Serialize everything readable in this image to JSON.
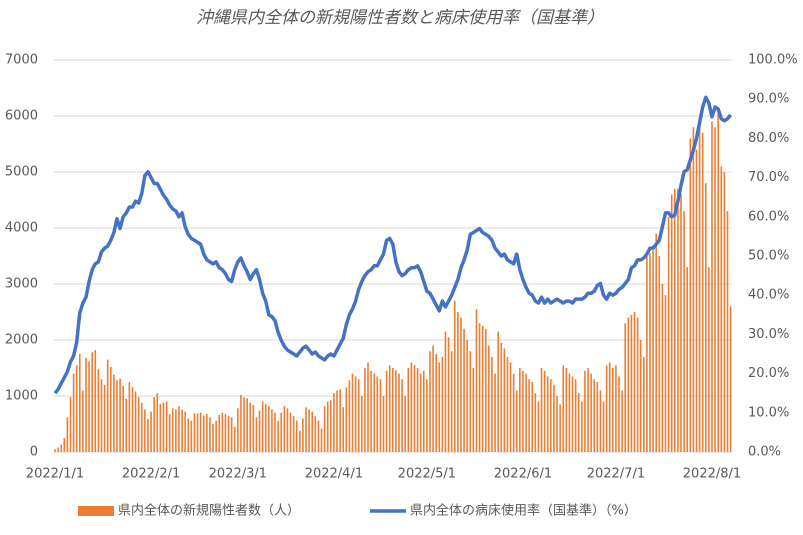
{
  "chart_data": {
    "type": "combo",
    "title": "沖縄県内全体の新規陽性者数と病床使用率（国基準）",
    "categories": [
      "2022/1/1",
      null,
      null,
      null,
      null,
      null,
      null,
      null,
      null,
      null,
      null,
      null,
      null,
      null,
      null,
      null,
      null,
      null,
      null,
      null,
      null,
      null,
      null,
      null,
      null,
      null,
      null,
      null,
      null,
      null,
      null,
      "2022/2/1",
      null,
      null,
      null,
      null,
      null,
      null,
      null,
      null,
      null,
      null,
      null,
      null,
      null,
      null,
      null,
      null,
      null,
      null,
      null,
      null,
      null,
      null,
      null,
      null,
      null,
      null,
      null,
      "2022/3/1",
      null,
      null,
      null,
      null,
      null,
      null,
      null,
      null,
      null,
      null,
      null,
      null,
      null,
      null,
      null,
      null,
      null,
      null,
      null,
      null,
      null,
      null,
      null,
      null,
      null,
      null,
      null,
      null,
      null,
      null,
      "2022/4/1",
      null,
      null,
      null,
      null,
      null,
      null,
      null,
      null,
      null,
      null,
      null,
      null,
      null,
      null,
      null,
      null,
      null,
      null,
      null,
      null,
      null,
      null,
      null,
      null,
      null,
      null,
      null,
      null,
      null,
      "2022/5/1",
      null,
      null,
      null,
      null,
      null,
      null,
      null,
      null,
      null,
      null,
      null,
      null,
      null,
      null,
      null,
      null,
      null,
      null,
      null,
      null,
      null,
      null,
      null,
      null,
      null,
      null,
      null,
      null,
      null,
      null,
      "2022/6/1",
      null,
      null,
      null,
      null,
      null,
      null,
      null,
      null,
      null,
      null,
      null,
      null,
      null,
      null,
      null,
      null,
      null,
      null,
      null,
      null,
      null,
      null,
      null,
      null,
      null,
      null,
      null,
      null,
      null,
      "2022/7/1",
      null,
      null,
      null,
      null,
      null,
      null,
      null,
      null,
      null,
      null,
      null,
      null,
      null,
      null,
      null,
      null,
      null,
      null,
      null,
      null,
      null,
      null,
      null,
      null,
      null,
      null,
      null,
      null,
      null,
      null,
      "2022/8/1",
      null,
      null,
      null,
      null,
      null,
      null
    ],
    "series": [
      {
        "name": "県内全体の新規陽性者数（人）",
        "type": "bar",
        "color": "#ED7D31",
        "values": [
          50,
          80,
          130,
          250,
          620,
          980,
          1400,
          1550,
          1750,
          1100,
          1680,
          1620,
          1780,
          1820,
          1480,
          1300,
          1200,
          1650,
          1520,
          1380,
          1280,
          1310,
          1180,
          950,
          1250,
          1160,
          1080,
          980,
          880,
          760,
          590,
          720,
          980,
          1050,
          860,
          880,
          900,
          680,
          780,
          760,
          820,
          760,
          720,
          600,
          560,
          690,
          690,
          700,
          650,
          680,
          620,
          500,
          560,
          660,
          700,
          680,
          640,
          620,
          450,
          780,
          1020,
          980,
          960,
          880,
          840,
          620,
          740,
          900,
          860,
          820,
          760,
          700,
          560,
          700,
          820,
          780,
          700,
          640,
          560,
          380,
          600,
          800,
          760,
          720,
          640,
          560,
          420,
          820,
          900,
          920,
          1050,
          1100,
          1120,
          800,
          1150,
          1280,
          1400,
          1350,
          1300,
          1000,
          1500,
          1600,
          1450,
          1400,
          1350,
          1300,
          1000,
          1450,
          1550,
          1500,
          1460,
          1400,
          1300,
          1000,
          1500,
          1600,
          1550,
          1500,
          1400,
          1450,
          1300,
          1800,
          1900,
          1750,
          1600,
          1700,
          2150,
          2050,
          1800,
          2700,
          2500,
          2400,
          2200,
          2000,
          1800,
          1500,
          2550,
          2300,
          2250,
          2200,
          1900,
          1700,
          1400,
          2150,
          1950,
          1850,
          1700,
          1600,
          1400,
          1100,
          1500,
          1450,
          1400,
          1300,
          1250,
          1050,
          900,
          1500,
          1450,
          1350,
          1300,
          1200,
          1000,
          850,
          1550,
          1500,
          1400,
          1350,
          1300,
          1050,
          900,
          1450,
          1500,
          1400,
          1300,
          1250,
          1100,
          900,
          1550,
          1600,
          1500,
          1550,
          1350,
          1100,
          2300,
          2400,
          2450,
          2500,
          2400,
          2000,
          1700,
          3500,
          3550,
          3600,
          3900,
          3500,
          3000,
          2800,
          4200,
          4600,
          4700,
          4700,
          4600,
          4300,
          3300,
          5600,
          5800,
          5400,
          6000,
          5700,
          4800,
          3300,
          5900,
          5800,
          6100,
          5100,
          5000,
          4300,
          2600
        ]
      },
      {
        "name": "県内全体の病床使用率（国基準）（%）",
        "type": "line",
        "axis": "y2",
        "color": "#4472C4",
        "values": [
          15.0,
          16.0,
          17.5,
          19.0,
          20.5,
          23.0,
          24.5,
          28.0,
          35.5,
          38.0,
          39.5,
          43.5,
          46.5,
          48.0,
          48.5,
          51.0,
          52.0,
          52.5,
          54.0,
          56.0,
          59.5,
          57.0,
          60.0,
          61.0,
          62.5,
          62.5,
          64.0,
          63.5,
          66.0,
          70.5,
          71.5,
          70.0,
          68.5,
          68.5,
          67.0,
          65.5,
          64.5,
          63.0,
          62.0,
          61.5,
          60.0,
          61.0,
          57.5,
          55.5,
          54.5,
          54.0,
          53.5,
          53.0,
          50.5,
          49.0,
          48.5,
          48.0,
          48.5,
          47.0,
          46.5,
          45.5,
          44.0,
          43.5,
          46.5,
          48.5,
          49.5,
          47.5,
          46.0,
          44.0,
          45.5,
          46.5,
          44.0,
          40.5,
          38.5,
          35.0,
          34.5,
          33.5,
          30.5,
          28.5,
          27.0,
          26.0,
          25.5,
          25.0,
          24.5,
          25.5,
          26.5,
          27.0,
          26.0,
          25.0,
          25.5,
          24.5,
          24.0,
          23.5,
          24.5,
          25.0,
          24.5,
          26.0,
          27.5,
          29.0,
          32.5,
          35.0,
          36.5,
          38.5,
          41.5,
          43.5,
          45.0,
          46.0,
          46.5,
          47.5,
          47.5,
          49.0,
          50.5,
          54.0,
          54.5,
          53.0,
          48.5,
          46.0,
          45.0,
          45.5,
          46.5,
          47.0,
          47.0,
          47.5,
          46.0,
          43.5,
          41.0,
          40.5,
          39.0,
          37.5,
          36.0,
          38.5,
          37.0,
          38.5,
          40.0,
          42.0,
          44.0,
          47.0,
          49.0,
          51.5,
          55.5,
          56.0,
          56.5,
          57.0,
          56.0,
          55.5,
          55.0,
          54.0,
          52.0,
          51.0,
          50.0,
          50.5,
          49.0,
          48.5,
          48.0,
          50.5,
          46.5,
          44.0,
          42.0,
          40.5,
          40.0,
          38.5,
          38.0,
          39.5,
          38.0,
          39.0,
          38.0,
          38.5,
          39.0,
          38.5,
          38.0,
          38.5,
          38.5,
          38.0,
          39.0,
          39.0,
          39.0,
          39.5,
          40.5,
          40.5,
          41.0,
          42.5,
          43.0,
          40.0,
          39.0,
          40.5,
          40.0,
          40.5,
          41.5,
          42.0,
          43.0,
          44.0,
          47.0,
          47.5,
          49.0,
          49.0,
          49.5,
          50.5,
          52.0,
          52.0,
          53.0,
          54.0,
          57.5,
          61.0,
          61.0,
          60.0,
          60.5,
          64.0,
          68.0,
          71.5,
          72.0,
          74.5,
          77.0,
          80.0,
          84.0,
          88.0,
          90.5,
          89.0,
          85.5,
          88.0,
          87.5,
          85.0,
          84.5,
          85.0,
          86.0
        ]
      }
    ],
    "ylim": [
      0,
      7000
    ],
    "yticks": [
      0,
      1000,
      2000,
      3000,
      4000,
      5000,
      6000,
      7000
    ],
    "y2lim": [
      0,
      100
    ],
    "y2ticks": [
      {
        "value": 0,
        "label": "0.0%"
      },
      {
        "value": 10,
        "label": "10.0%"
      },
      {
        "value": 20,
        "label": "20.0%"
      },
      {
        "value": 30,
        "label": "30.0%"
      },
      {
        "value": 40,
        "label": "40.0%"
      },
      {
        "value": 50,
        "label": "50.0%"
      },
      {
        "value": 60,
        "label": "60.0%"
      },
      {
        "value": 70,
        "label": "70.0%"
      },
      {
        "value": 80,
        "label": "80.0%"
      },
      {
        "value": 90,
        "label": "90.0%"
      },
      {
        "value": 100,
        "label": "100.0%"
      }
    ],
    "grid": true
  }
}
